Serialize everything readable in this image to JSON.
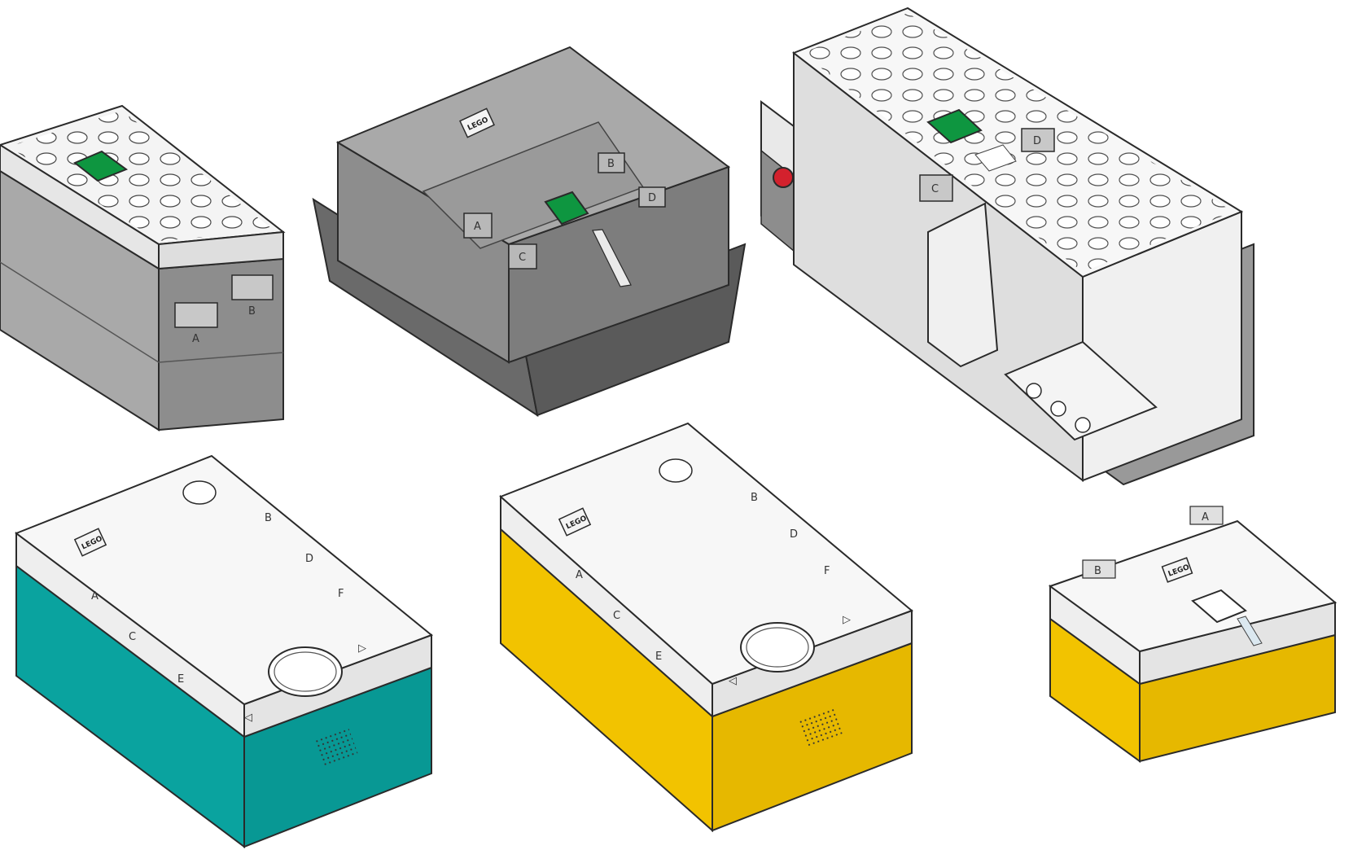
{
  "colors": {
    "white": "#f4f4f4",
    "light_gray": "#a9a9a9",
    "mid_gray": "#8d8d8d",
    "dark_gray": "#6a6a6a",
    "green_button": "#0e9640",
    "red_button": "#d3212d",
    "teal": "#0aa39f",
    "yellow": "#f2c300",
    "outline": "#2a2a2a"
  },
  "logo_text": "LEGO",
  "hubs": [
    {
      "id": "move-hub",
      "ports": [
        "A",
        "B"
      ]
    },
    {
      "id": "technic-hub",
      "ports": [
        "A",
        "B",
        "C",
        "D"
      ]
    },
    {
      "id": "boost-move-hub",
      "ports": [
        "C",
        "D"
      ]
    },
    {
      "id": "spike-prime-hub-teal",
      "ports": [
        "A",
        "B",
        "C",
        "D",
        "E",
        "F"
      ]
    },
    {
      "id": "spike-prime-hub-yellow",
      "ports": [
        "A",
        "B",
        "C",
        "D",
        "E",
        "F"
      ]
    },
    {
      "id": "spike-essential-hub",
      "ports": [
        "A",
        "B"
      ]
    }
  ]
}
